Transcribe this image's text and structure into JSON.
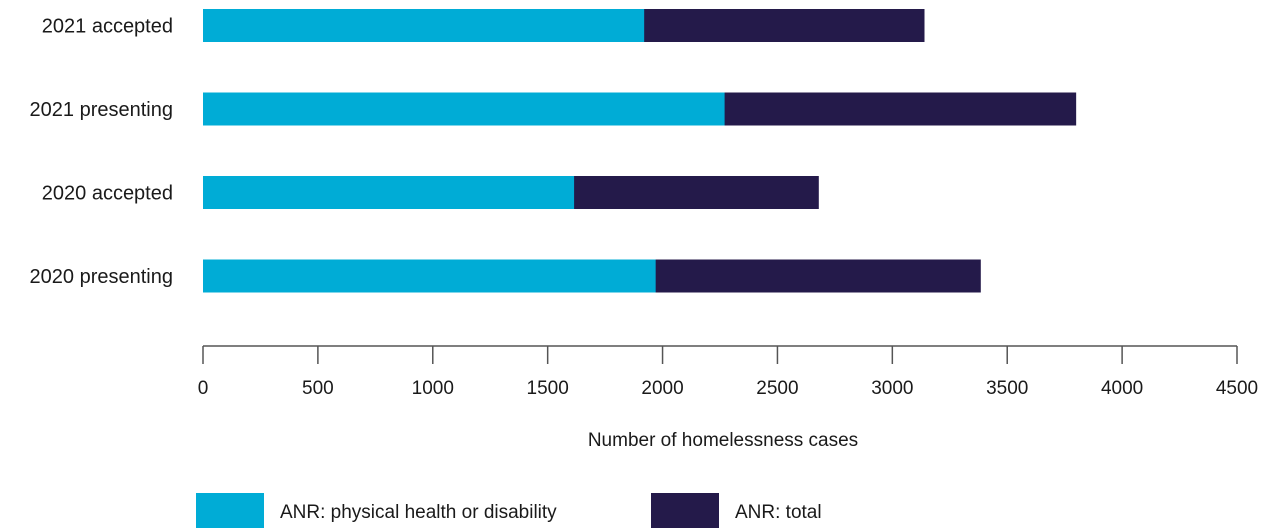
{
  "chart_data": {
    "type": "bar",
    "orientation": "horizontal",
    "stacked": false,
    "categories": [
      "2021 accepted",
      "2021 presenting",
      "2020 accepted",
      "2020 presenting"
    ],
    "series": [
      {
        "name": "ANR: total",
        "color": "#241a4a",
        "values": [
          3140,
          3800,
          2680,
          3385
        ]
      },
      {
        "name": "ANR: physical health or disability",
        "color": "#00acd6",
        "values": [
          1920,
          2270,
          1615,
          1970
        ]
      }
    ],
    "legend_order": [
      "ANR: physical health or disability",
      "ANR: total"
    ],
    "xlabel": "Number of homelessness cases",
    "xlim": [
      0,
      4500
    ],
    "xticks": [
      0,
      500,
      1000,
      1500,
      2000,
      2500,
      3000,
      3500,
      4000,
      4500
    ],
    "grid": false,
    "legend_position": "bottom"
  }
}
